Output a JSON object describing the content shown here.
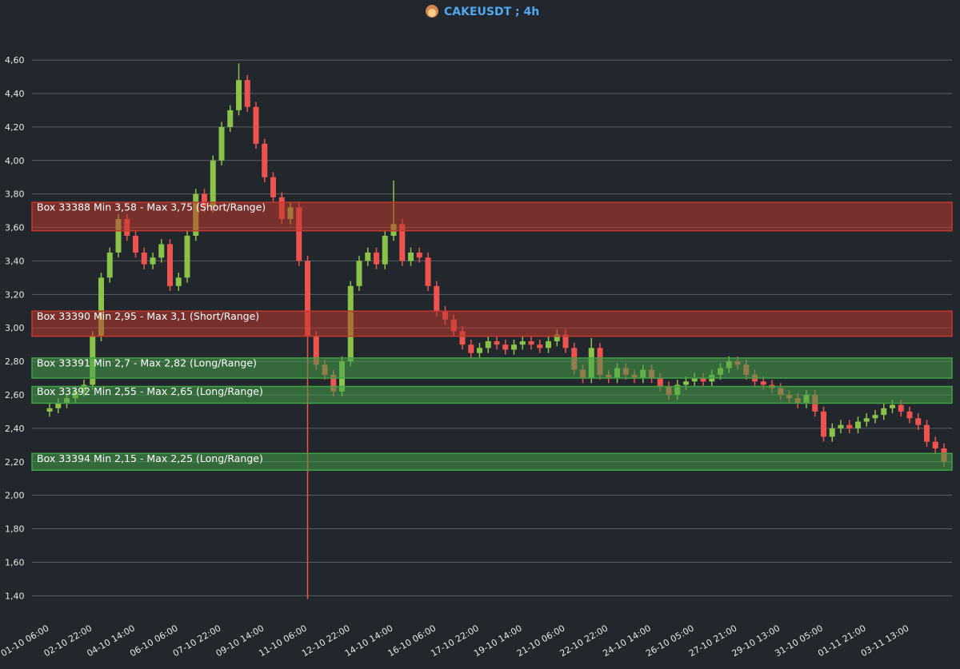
{
  "chart_data": {
    "type": "candlestick",
    "title": "CAKEUSDT ; 4h",
    "categories": [
      "01-10 06:00",
      null,
      null,
      null,
      null,
      "02-10 22:00",
      null,
      null,
      null,
      null,
      "04-10 14:00",
      null,
      null,
      null,
      null,
      "06-10 06:00",
      null,
      null,
      null,
      null,
      "07-10 22:00",
      null,
      null,
      null,
      null,
      "09-10 14:00",
      null,
      null,
      null,
      null,
      "11-10 06:00",
      null,
      null,
      null,
      null,
      "12-10 22:00",
      null,
      null,
      null,
      null,
      "14-10 14:00",
      null,
      null,
      null,
      null,
      "16-10 06:00",
      null,
      null,
      null,
      null,
      "17-10 22:00",
      null,
      null,
      null,
      null,
      "19-10 14:00",
      null,
      null,
      null,
      null,
      "21-10 06:00",
      null,
      null,
      null,
      null,
      "22-10 22:00",
      null,
      null,
      null,
      null,
      "24-10 14:00",
      null,
      null,
      null,
      null,
      "26-10 05:00",
      null,
      null,
      null,
      null,
      "27-10 21:00",
      null,
      null,
      null,
      null,
      "29-10 13:00",
      null,
      null,
      null,
      null,
      "31-10 05:00",
      null,
      null,
      null,
      null,
      "01-11 21:00",
      null,
      null,
      null,
      null,
      "03-11 13:00",
      null,
      null,
      null,
      null
    ],
    "open": [
      2.5,
      2.52,
      2.55,
      2.58,
      2.62,
      2.66,
      2.95,
      3.3,
      3.45,
      3.65,
      3.55,
      3.45,
      3.38,
      3.42,
      3.5,
      3.25,
      3.3,
      3.55,
      3.8,
      3.72,
      4.0,
      4.2,
      4.3,
      4.48,
      4.32,
      4.1,
      3.9,
      3.78,
      3.65,
      3.72,
      3.4,
      2.95,
      2.78,
      2.72,
      2.62,
      2.8,
      3.25,
      3.4,
      3.45,
      3.38,
      3.55,
      3.62,
      3.4,
      3.45,
      3.42,
      3.25,
      3.1,
      3.05,
      2.98,
      2.9,
      2.85,
      2.88,
      2.92,
      2.9,
      2.87,
      2.9,
      2.92,
      2.9,
      2.88,
      2.92,
      2.96,
      2.88,
      2.75,
      2.7,
      2.88,
      2.72,
      2.7,
      2.76,
      2.72,
      2.7,
      2.75,
      2.7,
      2.65,
      2.6,
      2.66,
      2.68,
      2.7,
      2.68,
      2.72,
      2.76,
      2.8,
      2.78,
      2.72,
      2.68,
      2.66,
      2.64,
      2.6,
      2.58,
      2.55,
      2.6,
      2.5,
      2.35,
      2.4,
      2.42,
      2.4,
      2.44,
      2.46,
      2.48,
      2.52,
      2.54,
      2.5,
      2.46,
      2.42,
      2.32,
      2.28
    ],
    "high": [
      2.55,
      2.58,
      2.61,
      2.65,
      2.69,
      2.98,
      3.33,
      3.48,
      3.68,
      3.68,
      3.58,
      3.48,
      3.45,
      3.53,
      3.53,
      3.33,
      3.58,
      3.83,
      3.83,
      4.03,
      4.23,
      4.33,
      4.58,
      4.51,
      4.35,
      4.13,
      3.93,
      3.81,
      3.75,
      3.75,
      3.43,
      2.98,
      2.81,
      2.75,
      2.83,
      3.28,
      3.43,
      3.48,
      3.48,
      3.58,
      3.88,
      3.65,
      3.48,
      3.48,
      3.45,
      3.28,
      3.13,
      3.08,
      3.01,
      2.93,
      2.91,
      2.95,
      2.95,
      2.93,
      2.93,
      2.95,
      2.95,
      2.93,
      2.95,
      2.99,
      2.99,
      2.91,
      2.78,
      2.94,
      2.91,
      2.75,
      2.79,
      2.79,
      2.75,
      2.78,
      2.78,
      2.73,
      2.68,
      2.69,
      2.71,
      2.73,
      2.73,
      2.75,
      2.79,
      2.83,
      2.83,
      2.81,
      2.75,
      2.71,
      2.69,
      2.67,
      2.63,
      2.61,
      2.63,
      2.63,
      2.53,
      2.43,
      2.45,
      2.45,
      2.47,
      2.49,
      2.51,
      2.55,
      2.57,
      2.57,
      2.53,
      2.49,
      2.45,
      2.35,
      2.31
    ],
    "low": [
      2.47,
      2.49,
      2.52,
      2.55,
      2.59,
      2.63,
      2.92,
      3.27,
      3.42,
      3.52,
      3.42,
      3.35,
      3.35,
      3.39,
      3.22,
      3.22,
      3.27,
      3.52,
      3.69,
      3.69,
      3.97,
      4.17,
      4.27,
      4.29,
      4.07,
      3.87,
      3.75,
      3.62,
      3.62,
      3.37,
      1.38,
      2.75,
      2.69,
      2.59,
      2.59,
      2.77,
      3.22,
      3.37,
      3.35,
      3.35,
      3.52,
      3.37,
      3.37,
      3.39,
      3.22,
      3.07,
      3.02,
      2.95,
      2.87,
      2.82,
      2.82,
      2.85,
      2.87,
      2.84,
      2.84,
      2.87,
      2.87,
      2.85,
      2.85,
      2.89,
      2.85,
      2.72,
      2.67,
      2.67,
      2.69,
      2.67,
      2.67,
      2.69,
      2.67,
      2.67,
      2.67,
      2.62,
      2.57,
      2.57,
      2.63,
      2.65,
      2.65,
      2.65,
      2.69,
      2.73,
      2.75,
      2.69,
      2.65,
      2.63,
      2.61,
      2.57,
      2.55,
      2.52,
      2.52,
      2.47,
      2.32,
      2.32,
      2.37,
      2.37,
      2.37,
      2.41,
      2.43,
      2.45,
      2.49,
      2.47,
      2.43,
      2.39,
      2.29,
      2.25,
      2.17
    ],
    "close": [
      2.52,
      2.55,
      2.58,
      2.62,
      2.66,
      2.95,
      3.3,
      3.45,
      3.65,
      3.55,
      3.45,
      3.38,
      3.42,
      3.5,
      3.25,
      3.3,
      3.55,
      3.8,
      3.72,
      4.0,
      4.2,
      4.3,
      4.48,
      4.32,
      4.1,
      3.9,
      3.78,
      3.65,
      3.72,
      3.4,
      2.95,
      2.78,
      2.72,
      2.62,
      2.8,
      3.25,
      3.4,
      3.45,
      3.38,
      3.55,
      3.62,
      3.4,
      3.45,
      3.42,
      3.25,
      3.1,
      3.05,
      2.98,
      2.9,
      2.85,
      2.88,
      2.92,
      2.9,
      2.87,
      2.9,
      2.92,
      2.9,
      2.88,
      2.92,
      2.96,
      2.88,
      2.75,
      2.7,
      2.88,
      2.72,
      2.7,
      2.76,
      2.72,
      2.7,
      2.75,
      2.7,
      2.65,
      2.6,
      2.66,
      2.68,
      2.7,
      2.68,
      2.72,
      2.76,
      2.8,
      2.78,
      2.72,
      2.68,
      2.66,
      2.64,
      2.6,
      2.58,
      2.55,
      2.6,
      2.5,
      2.35,
      2.4,
      2.42,
      2.4,
      2.44,
      2.46,
      2.48,
      2.52,
      2.54,
      2.5,
      2.46,
      2.42,
      2.32,
      2.28,
      2.2
    ],
    "up_color": "#8bc34a",
    "down_color": "#ef5350",
    "ylim": [
      1.33,
      4.82
    ],
    "yticks": [
      {
        "value": 1.4,
        "label": "1,40"
      },
      {
        "value": 1.6,
        "label": "1,60"
      },
      {
        "value": 1.8,
        "label": "1,80"
      },
      {
        "value": 2.0,
        "label": "2,00"
      },
      {
        "value": 2.2,
        "label": "2,20"
      },
      {
        "value": 2.4,
        "label": "2,40"
      },
      {
        "value": 2.6,
        "label": "2,60"
      },
      {
        "value": 2.8,
        "label": "2,80"
      },
      {
        "value": 3.0,
        "label": "3,00"
      },
      {
        "value": 3.2,
        "label": "3,20"
      },
      {
        "value": 3.4,
        "label": "3,40"
      },
      {
        "value": 3.6,
        "label": "3,60"
      },
      {
        "value": 3.8,
        "label": "3,80"
      },
      {
        "value": 4.0,
        "label": "4,00"
      },
      {
        "value": 4.2,
        "label": "4,20"
      },
      {
        "value": 4.4,
        "label": "4,40"
      },
      {
        "value": 4.6,
        "label": "4,60"
      }
    ],
    "grid": true,
    "boxes": [
      {
        "label": "Box 33388 Min 3,58 - Max 3,75  (Short/Range)",
        "min": 3.58,
        "max": 3.75,
        "color": "#c0392b"
      },
      {
        "label": "Box 33390 Min 2,95 - Max 3,1  (Short/Range)",
        "min": 2.95,
        "max": 3.1,
        "color": "#c0392b"
      },
      {
        "label": "Box 33391 Min 2,7 - Max 2,82  (Long/Range)",
        "min": 2.7,
        "max": 2.82,
        "color": "#43a047"
      },
      {
        "label": "Box 33392 Min 2,55 - Max 2,65  (Long/Range)",
        "min": 2.55,
        "max": 2.65,
        "color": "#43a047"
      },
      {
        "label": "Box 33394 Min 2,15 - Max 2,25  (Long/Range)",
        "min": 2.15,
        "max": 2.25,
        "color": "#43a047"
      }
    ]
  }
}
